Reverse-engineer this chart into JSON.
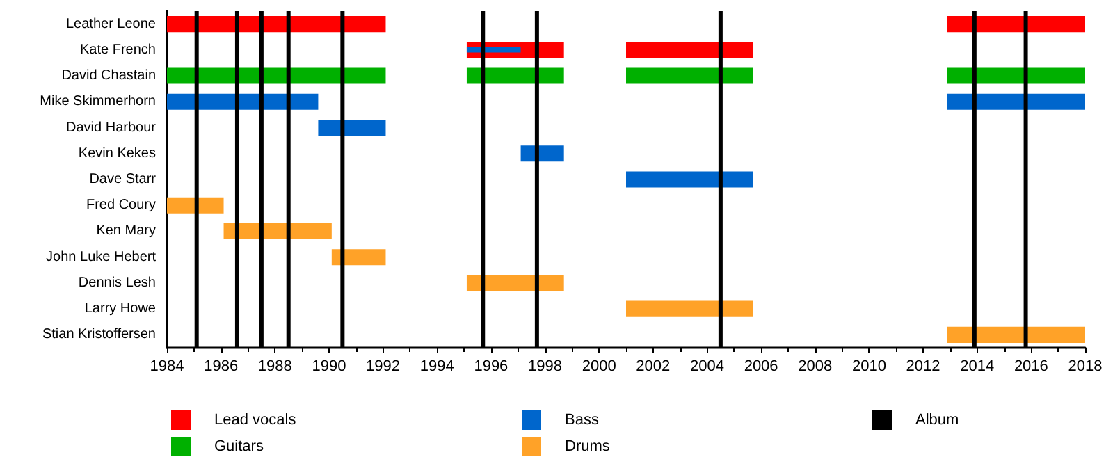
{
  "chart_data": {
    "type": "bar",
    "orientation": "horizontal",
    "categories": [
      "Leather Leone",
      "Kate French",
      "David Chastain",
      "Mike Skimmerhorn",
      "David Harbour",
      "Kevin Kekes",
      "Dave Starr",
      "Fred Coury",
      "Ken Mary",
      "John Luke Hebert",
      "Dennis Lesh",
      "Larry Howe",
      "Stian Kristoffersen"
    ],
    "series": [
      {
        "name": "Lead vocals",
        "color": "#ff0000",
        "base": [
          1984,
          1995.1,
          null,
          null,
          null,
          null,
          null,
          null,
          null,
          null,
          null,
          null,
          null
        ],
        "values": [
          8.1,
          3.6,
          null,
          null,
          null,
          null,
          null,
          null,
          null,
          null,
          null,
          null,
          null
        ]
      },
      {
        "color": "#ff0000",
        "base": [
          2012.9,
          2001.0,
          null,
          null,
          null,
          null,
          null,
          null,
          null,
          null,
          null,
          null,
          null
        ],
        "values": [
          5.1,
          4.7,
          null,
          null,
          null,
          null,
          null,
          null,
          null,
          null,
          null,
          null,
          null
        ]
      },
      {
        "name": "Guitars",
        "color": "#00b000",
        "base": [
          null,
          null,
          1984,
          null,
          null,
          null,
          null,
          null,
          null,
          null,
          null,
          null,
          null
        ],
        "values": [
          null,
          null,
          8.1,
          null,
          null,
          null,
          null,
          null,
          null,
          null,
          null,
          null,
          null
        ]
      },
      {
        "color": "#00b000",
        "base": [
          null,
          null,
          1995.1,
          null,
          null,
          null,
          null,
          null,
          null,
          null,
          null,
          null,
          null
        ],
        "values": [
          null,
          null,
          3.6,
          null,
          null,
          null,
          null,
          null,
          null,
          null,
          null,
          null,
          null
        ]
      },
      {
        "color": "#00b000",
        "base": [
          null,
          null,
          2001.0,
          null,
          null,
          null,
          null,
          null,
          null,
          null,
          null,
          null,
          null
        ],
        "values": [
          null,
          null,
          4.7,
          null,
          null,
          null,
          null,
          null,
          null,
          null,
          null,
          null,
          null
        ]
      },
      {
        "color": "#00b000",
        "base": [
          null,
          null,
          2012.9,
          null,
          null,
          null,
          null,
          null,
          null,
          null,
          null,
          null,
          null
        ],
        "values": [
          null,
          null,
          5.1,
          null,
          null,
          null,
          null,
          null,
          null,
          null,
          null,
          null,
          null
        ]
      },
      {
        "name": "Bass",
        "color": "#0066cc",
        "base": [
          null,
          null,
          null,
          1984,
          1989.6,
          1997.1,
          2001.0,
          null,
          null,
          null,
          null,
          null,
          null
        ],
        "values": [
          null,
          null,
          null,
          5.6,
          2.5,
          1.6,
          4.7,
          null,
          null,
          null,
          null,
          null,
          null
        ]
      },
      {
        "color": "#0066cc",
        "base": [
          null,
          1995.1,
          null,
          2012.9,
          null,
          null,
          null,
          null,
          null,
          null,
          null,
          null,
          null
        ],
        "values": [
          null,
          2.0,
          null,
          5.1,
          null,
          null,
          null,
          null,
          null,
          null,
          null,
          null,
          null
        ]
      },
      {
        "name": "Drums",
        "color": "#ffa228",
        "base": [
          null,
          null,
          null,
          null,
          null,
          null,
          null,
          1984,
          1986.1,
          1990.1,
          1995.1,
          2001.0,
          2012.9
        ],
        "values": [
          null,
          null,
          null,
          null,
          null,
          null,
          null,
          2.1,
          4.0,
          2.0,
          3.6,
          4.7,
          5.1
        ]
      }
    ],
    "xlim": [
      1984,
      2018
    ],
    "xticks": [
      1984,
      1986,
      1988,
      1990,
      1992,
      1994,
      1996,
      1998,
      2000,
      2002,
      2004,
      2006,
      2008,
      2010,
      2012,
      2014,
      2016,
      2018
    ],
    "ref_lines": [
      {
        "axis": "x",
        "value": 1985.1,
        "label": "Album",
        "color": "#000000"
      },
      {
        "axis": "x",
        "value": 1986.6,
        "color": "#000000"
      },
      {
        "axis": "x",
        "value": 1987.5,
        "color": "#000000"
      },
      {
        "axis": "x",
        "value": 1988.5,
        "color": "#000000"
      },
      {
        "axis": "x",
        "value": 1990.5,
        "color": "#000000"
      },
      {
        "axis": "x",
        "value": 1995.7,
        "color": "#000000"
      },
      {
        "axis": "x",
        "value": 1997.7,
        "color": "#000000"
      },
      {
        "axis": "x",
        "value": 2004.5,
        "color": "#000000"
      },
      {
        "axis": "x",
        "value": 2013.9,
        "color": "#000000"
      },
      {
        "axis": "x",
        "value": 2015.8,
        "color": "#000000"
      }
    ],
    "grid": false,
    "legend": "bottom"
  }
}
